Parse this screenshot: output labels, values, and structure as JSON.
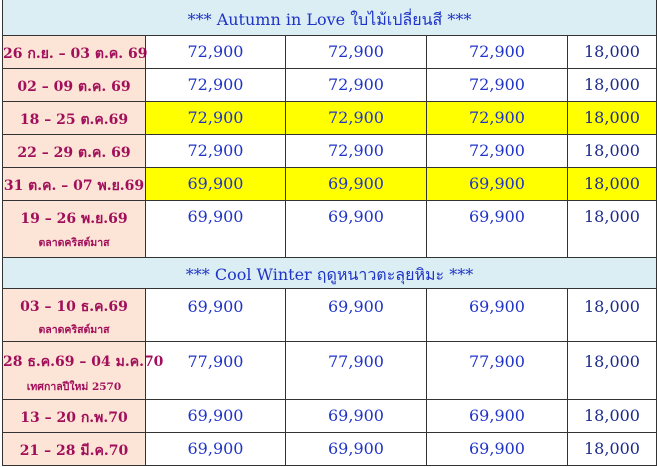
{
  "sections": [
    {
      "title": "*** Autumn in Love ใบไม้เปลี่ยนสี ***",
      "rows": [
        {
          "date": "26 ก.ย. – 03 ต.ค. 69",
          "note": "",
          "prices": [
            "72,900",
            "72,900",
            "72,900",
            "18,000"
          ],
          "highlight": false
        },
        {
          "date": "02 – 09 ต.ค. 69",
          "note": "",
          "prices": [
            "72,900",
            "72,900",
            "72,900",
            "18,000"
          ],
          "highlight": false
        },
        {
          "date": "18 – 25 ต.ค.69",
          "note": "",
          "prices": [
            "72,900",
            "72,900",
            "72,900",
            "18,000"
          ],
          "highlight": true
        },
        {
          "date": "22 – 29 ต.ค. 69",
          "note": "",
          "prices": [
            "72,900",
            "72,900",
            "72,900",
            "18,000"
          ],
          "highlight": false
        },
        {
          "date": "31 ต.ค. – 07 พ.ย.69",
          "note": "",
          "prices": [
            "69,900",
            "69,900",
            "69,900",
            "18,000"
          ],
          "highlight": true
        },
        {
          "date": "19 – 26 พ.ย.69",
          "note": "ตลาดคริสต์มาส",
          "prices": [
            "69,900",
            "69,900",
            "69,900",
            "18,000"
          ],
          "highlight": false
        }
      ]
    },
    {
      "title": "*** Cool Winter ฤดูหนาวตะลุยหิมะ ***",
      "rows": [
        {
          "date": "03 – 10 ธ.ค.69",
          "note": "ตลาดคริสต์มาส",
          "prices": [
            "69,900",
            "69,900",
            "69,900",
            "18,000"
          ],
          "highlight": false
        },
        {
          "date": "28 ธ.ค.69 – 04 ม.ค.70",
          "note": "เทศกาลปีใหม่ 2570",
          "prices": [
            "77,900",
            "77,900",
            "77,900",
            "18,000"
          ],
          "highlight": false
        },
        {
          "date": "13 – 20 ก.พ.70",
          "note": "",
          "prices": [
            "69,900",
            "69,900",
            "69,900",
            "18,000"
          ],
          "highlight": false
        },
        {
          "date": "21 – 28 มี.ค.70",
          "note": "",
          "prices": [
            "69,900",
            "69,900",
            "69,900",
            "18,000"
          ],
          "highlight": false
        }
      ]
    }
  ]
}
